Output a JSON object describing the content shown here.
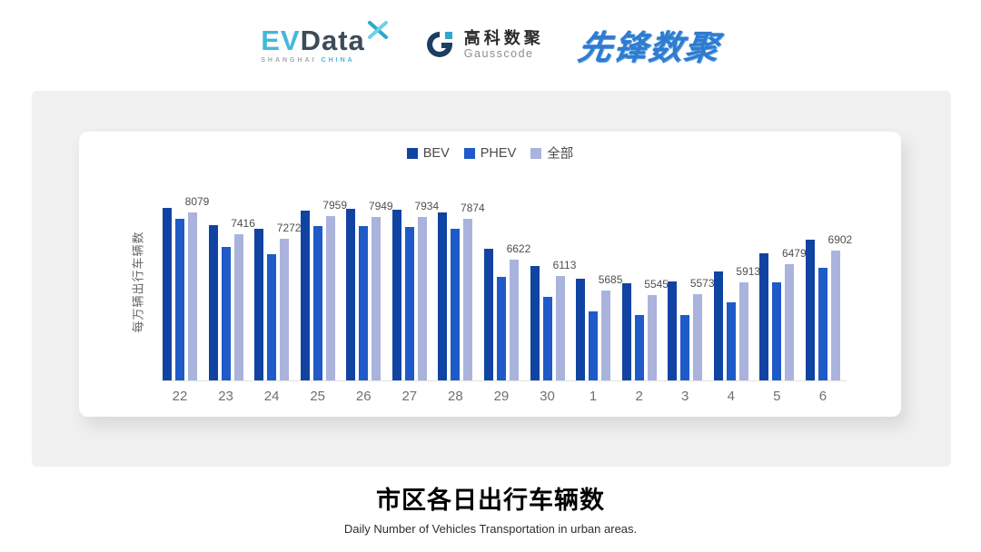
{
  "header": {
    "evdata": {
      "ev": "EV",
      "data": "Data",
      "sub_left": "SHANGHAI",
      "sub_right": "CHINA"
    },
    "gausscode": {
      "cn": "高科数聚",
      "en": "Gausscode"
    },
    "pioneer": {
      "text": "先锋数聚"
    }
  },
  "chart": {
    "y_axis_label": "每万辆出行车辆数",
    "colors": {
      "bev": "#1143a3",
      "phev": "#1e5ac8",
      "all": "#a9b3dc"
    }
  },
  "chart_data": {
    "type": "bar",
    "title": "市区各日出行车辆数",
    "categories": [
      "22",
      "23",
      "24",
      "25",
      "26",
      "27",
      "28",
      "29",
      "30",
      "1",
      "2",
      "3",
      "4",
      "5",
      "6"
    ],
    "series": [
      {
        "name": "BEV",
        "color": "#1143a3",
        "values": [
          8230,
          7680,
          7590,
          8150,
          8190,
          8170,
          8080,
          6950,
          6440,
          6050,
          5890,
          5940,
          6260,
          6810,
          7230
        ]
      },
      {
        "name": "PHEV",
        "color": "#1e5ac8",
        "values": [
          7890,
          7010,
          6790,
          7650,
          7670,
          7640,
          7570,
          6100,
          5480,
          5020,
          4910,
          4910,
          5310,
          5920,
          6370
        ]
      },
      {
        "name": "全部",
        "color": "#a9b3dc",
        "labeled": true,
        "values": [
          8079,
          7416,
          7272,
          7959,
          7949,
          7934,
          7874,
          6622,
          6113,
          5685,
          5545,
          5573,
          5913,
          6479,
          6902
        ]
      }
    ],
    "xlabel": "",
    "ylabel": "每万辆出行车辆数",
    "ylim": [
      2900,
      8500
    ],
    "y_axis_hidden": true,
    "grid": false,
    "legend_position": "top"
  },
  "footer": {
    "title": "市区各日出行车辆数",
    "subtitle": "Daily Number of Vehicles Transportation in urban areas."
  }
}
